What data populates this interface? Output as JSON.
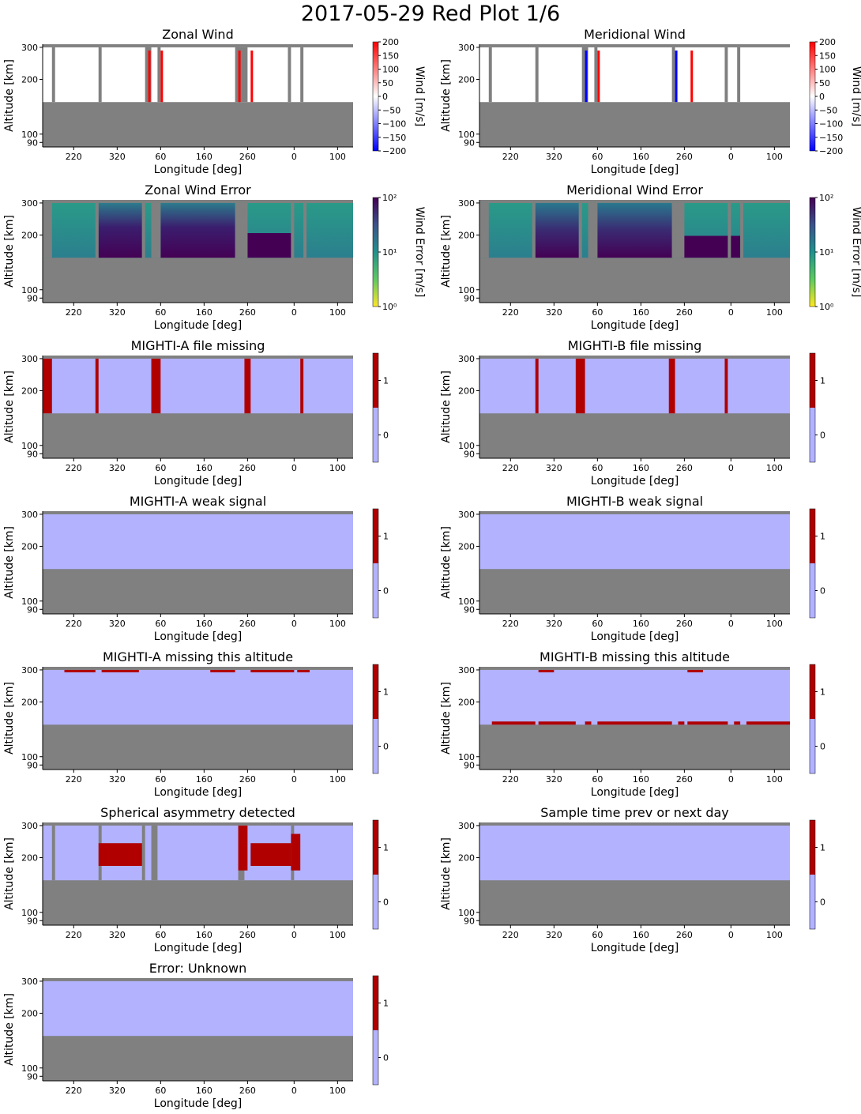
{
  "figure_title": "2017-05-29 Red Plot 1/6",
  "colors": {
    "no_data": "#808080",
    "flag_zero": "#b2b2ff",
    "flag_one": "#b00000",
    "wind_positive": "#ff0000",
    "wind_negative": "#0000ff"
  },
  "chart_data": [
    {
      "type": "heatmap",
      "title": "Zonal Wind",
      "xlabel": "Longitude [deg]",
      "ylabel": "Altitude [km]",
      "xticks": [
        "220",
        "320",
        "60",
        "160",
        "260",
        "0",
        "100"
      ],
      "yticks": [
        "300",
        "200",
        "100",
        "90"
      ],
      "colorbar": {
        "label": "Wind [m/s]",
        "scale": "linear",
        "range": [
          -200,
          200
        ],
        "ticks": [
          "200",
          "150",
          "100",
          "50",
          "0",
          "−50",
          "−100",
          "−150",
          "−200"
        ],
        "colormap": "bwr"
      },
      "data_altitude_km": [
        150,
        300
      ],
      "gaps_longitude_index": [
        [
          0.03,
          0.04
        ],
        [
          0.18,
          0.19
        ],
        [
          0.33,
          0.35
        ],
        [
          0.37,
          0.38
        ],
        [
          0.62,
          0.66
        ],
        [
          0.79,
          0.8
        ],
        [
          0.83,
          0.84
        ]
      ],
      "strong_positive_bands": [
        [
          0.34,
          0.35
        ],
        [
          0.38,
          0.39
        ],
        [
          0.63,
          0.64
        ],
        [
          0.67,
          0.68
        ]
      ]
    },
    {
      "type": "heatmap",
      "title": "Meridional Wind",
      "xlabel": "Longitude [deg]",
      "ylabel": "Altitude [km]",
      "xticks": [
        "220",
        "320",
        "60",
        "160",
        "260",
        "0",
        "100"
      ],
      "yticks": [
        "300",
        "200",
        "100",
        "90"
      ],
      "colorbar": {
        "label": "Wind [m/s]",
        "scale": "linear",
        "range": [
          -200,
          200
        ],
        "ticks": [
          "200",
          "150",
          "100",
          "50",
          "0",
          "−50",
          "−100",
          "−150",
          "−200"
        ],
        "colormap": "bwr"
      },
      "data_altitude_km": [
        150,
        300
      ],
      "gaps_longitude_index": [
        [
          0.03,
          0.04
        ],
        [
          0.18,
          0.19
        ],
        [
          0.33,
          0.35
        ],
        [
          0.37,
          0.38
        ],
        [
          0.62,
          0.63
        ],
        [
          0.79,
          0.8
        ],
        [
          0.83,
          0.84
        ]
      ],
      "strong_positive_bands": [
        [
          0.38,
          0.39
        ],
        [
          0.68,
          0.69
        ]
      ],
      "strong_negative_bands": [
        [
          0.63,
          0.64
        ],
        [
          0.34,
          0.35
        ]
      ]
    },
    {
      "type": "heatmap",
      "title": "Zonal Wind Error",
      "xlabel": "Longitude [deg]",
      "ylabel": "Altitude [km]",
      "xticks": [
        "220",
        "320",
        "60",
        "160",
        "260",
        "0",
        "100"
      ],
      "yticks": [
        "300",
        "200",
        "100",
        "90"
      ],
      "colorbar": {
        "label": "Wind Error [m/s]",
        "scale": "log",
        "range": [
          1,
          100
        ],
        "ticks": [
          "10²",
          "10¹",
          "10⁰"
        ],
        "colormap": "viridis_r"
      },
      "data_altitude_km": [
        150,
        300
      ]
    },
    {
      "type": "heatmap",
      "title": "Meridional Wind Error",
      "xlabel": "Longitude [deg]",
      "ylabel": "Altitude [km]",
      "xticks": [
        "220",
        "320",
        "60",
        "160",
        "260",
        "0",
        "100"
      ],
      "yticks": [
        "300",
        "200",
        "100",
        "90"
      ],
      "colorbar": {
        "label": "Wind Error [m/s]",
        "scale": "log",
        "range": [
          1,
          100
        ],
        "ticks": [
          "10²",
          "10¹",
          "10⁰"
        ],
        "colormap": "viridis_r"
      },
      "data_altitude_km": [
        150,
        300
      ]
    },
    {
      "type": "heatmap",
      "title": "MIGHTI-A file missing",
      "xlabel": "Longitude [deg]",
      "ylabel": "Altitude [km]",
      "xticks": [
        "220",
        "320",
        "60",
        "160",
        "260",
        "0",
        "100"
      ],
      "yticks": [
        "300",
        "200",
        "100",
        "90"
      ],
      "colorbar": {
        "ticks": [
          "1",
          "0"
        ],
        "values": [
          0,
          1
        ]
      },
      "data_altitude_km": [
        150,
        300
      ],
      "flag_value_bands": [
        [
          0.0,
          0.03
        ],
        [
          0.17,
          0.18
        ],
        [
          0.35,
          0.38
        ],
        [
          0.65,
          0.67
        ],
        [
          0.83,
          0.84
        ]
      ]
    },
    {
      "type": "heatmap",
      "title": "MIGHTI-B file missing",
      "xlabel": "Longitude [deg]",
      "ylabel": "Altitude [km]",
      "xticks": [
        "220",
        "320",
        "60",
        "160",
        "260",
        "0",
        "100"
      ],
      "yticks": [
        "300",
        "200",
        "100",
        "90"
      ],
      "colorbar": {
        "ticks": [
          "1",
          "0"
        ],
        "values": [
          0,
          1
        ]
      },
      "data_altitude_km": [
        150,
        300
      ],
      "flag_value_bands": [
        [
          0.18,
          0.19
        ],
        [
          0.31,
          0.34
        ],
        [
          0.61,
          0.63
        ],
        [
          0.79,
          0.8
        ]
      ]
    },
    {
      "type": "heatmap",
      "title": "MIGHTI-A weak signal",
      "xlabel": "Longitude [deg]",
      "ylabel": "Altitude [km]",
      "xticks": [
        "220",
        "320",
        "60",
        "160",
        "260",
        "0",
        "100"
      ],
      "yticks": [
        "300",
        "200",
        "100",
        "90"
      ],
      "colorbar": {
        "ticks": [
          "1",
          "0"
        ],
        "values": [
          0,
          1
        ]
      },
      "data_altitude_km": [
        150,
        300
      ]
    },
    {
      "type": "heatmap",
      "title": "MIGHTI-B weak signal",
      "xlabel": "Longitude [deg]",
      "ylabel": "Altitude [km]",
      "xticks": [
        "220",
        "320",
        "60",
        "160",
        "260",
        "0",
        "100"
      ],
      "yticks": [
        "300",
        "200",
        "100",
        "90"
      ],
      "colorbar": {
        "ticks": [
          "1",
          "0"
        ],
        "values": [
          0,
          1
        ]
      },
      "data_altitude_km": [
        150,
        300
      ]
    },
    {
      "type": "heatmap",
      "title": "MIGHTI-A missing this altitude",
      "xlabel": "Longitude [deg]",
      "ylabel": "Altitude [km]",
      "xticks": [
        "220",
        "320",
        "60",
        "160",
        "260",
        "0",
        "100"
      ],
      "yticks": [
        "300",
        "200",
        "100",
        "90"
      ],
      "colorbar": {
        "ticks": [
          "1",
          "0"
        ],
        "values": [
          0,
          1
        ]
      },
      "data_altitude_km": [
        150,
        300
      ],
      "flag_top_bands": [
        [
          0.07,
          0.17
        ],
        [
          0.19,
          0.31
        ],
        [
          0.54,
          0.62
        ],
        [
          0.67,
          0.81
        ],
        [
          0.82,
          0.86
        ]
      ]
    },
    {
      "type": "heatmap",
      "title": "MIGHTI-B missing this altitude",
      "xlabel": "Longitude [deg]",
      "ylabel": "Altitude [km]",
      "xticks": [
        "220",
        "320",
        "60",
        "160",
        "260",
        "0",
        "100"
      ],
      "yticks": [
        "300",
        "200",
        "100",
        "90"
      ],
      "colorbar": {
        "ticks": [
          "1",
          "0"
        ],
        "values": [
          0,
          1
        ]
      },
      "data_altitude_km": [
        150,
        300
      ],
      "flag_top_bands": [
        [
          0.19,
          0.24
        ],
        [
          0.67,
          0.72
        ]
      ],
      "flag_bottom_bands": [
        [
          0.04,
          0.18
        ],
        [
          0.19,
          0.31
        ],
        [
          0.34,
          0.36
        ],
        [
          0.38,
          0.62
        ],
        [
          0.64,
          0.66
        ],
        [
          0.67,
          0.8
        ],
        [
          0.82,
          0.84
        ],
        [
          0.86,
          1.0
        ]
      ]
    },
    {
      "type": "heatmap",
      "title": "Spherical asymmetry detected",
      "xlabel": "Longitude [deg]",
      "ylabel": "Altitude [km]",
      "xticks": [
        "220",
        "320",
        "60",
        "160",
        "260",
        "0",
        "100"
      ],
      "yticks": [
        "300",
        "200",
        "100",
        "90"
      ],
      "colorbar": {
        "ticks": [
          "1",
          "0"
        ],
        "values": [
          0,
          1
        ]
      },
      "data_altitude_km": [
        150,
        300
      ],
      "gaps_longitude_index": [
        [
          0.03,
          0.04
        ],
        [
          0.18,
          0.19
        ],
        [
          0.32,
          0.33
        ],
        [
          0.35,
          0.37
        ],
        [
          0.63,
          0.65
        ],
        [
          0.8,
          0.81
        ]
      ],
      "flag_value_regions": [
        [
          0.18,
          0.32,
          180,
          240
        ],
        [
          0.63,
          0.66,
          170,
          300
        ],
        [
          0.67,
          0.8,
          180,
          240
        ],
        [
          0.8,
          0.83,
          170,
          270
        ]
      ]
    },
    {
      "type": "heatmap",
      "title": "Sample time prev or next day",
      "xlabel": "Longitude [deg]",
      "ylabel": "Altitude [km]",
      "xticks": [
        "220",
        "320",
        "60",
        "160",
        "260",
        "0",
        "100"
      ],
      "yticks": [
        "300",
        "200",
        "100",
        "90"
      ],
      "colorbar": {
        "ticks": [
          "1",
          "0"
        ],
        "values": [
          0,
          1
        ]
      },
      "data_altitude_km": [
        150,
        300
      ]
    },
    {
      "type": "heatmap",
      "title": "Error: Unknown",
      "xlabel": "Longitude [deg]",
      "ylabel": "Altitude [km]",
      "xticks": [
        "220",
        "320",
        "60",
        "160",
        "260",
        "0",
        "100"
      ],
      "yticks": [
        "300",
        "200",
        "100",
        "90"
      ],
      "colorbar": {
        "ticks": [
          "1",
          "0"
        ],
        "values": [
          0,
          1
        ]
      },
      "data_altitude_km": [
        150,
        300
      ]
    }
  ]
}
